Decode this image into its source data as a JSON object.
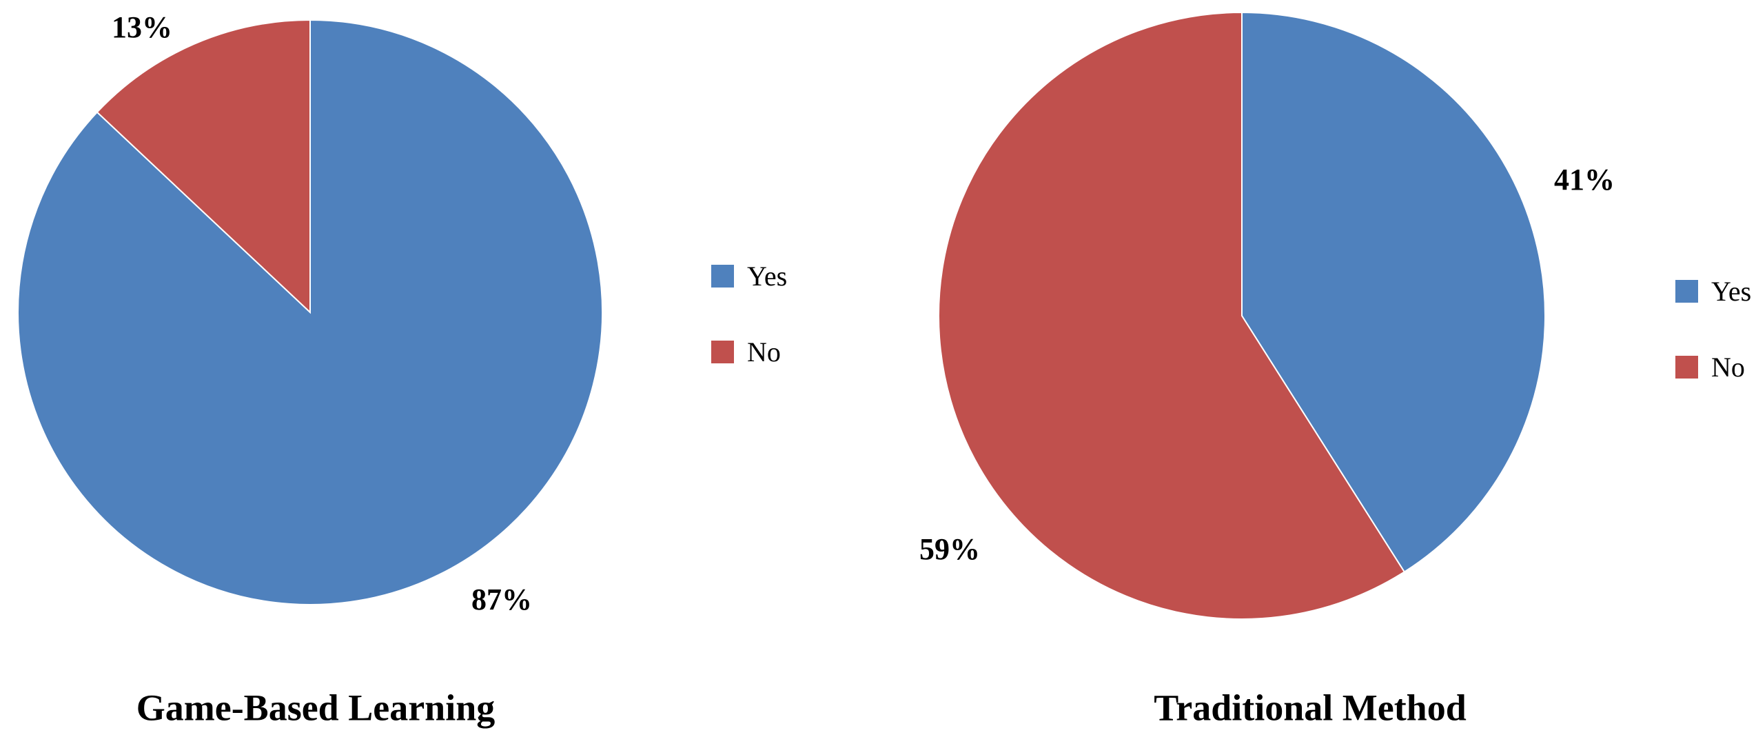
{
  "chart_data": [
    {
      "type": "pie",
      "title": "Game-Based Learning",
      "categories": [
        "Yes",
        "No"
      ],
      "values": [
        87,
        13
      ],
      "value_labels": [
        "87%",
        "13%"
      ],
      "colors": [
        "#4f81bd",
        "#c0504d"
      ],
      "legend": "right"
    },
    {
      "type": "pie",
      "title": "Traditional Method",
      "categories": [
        "Yes",
        "No"
      ],
      "values": [
        41,
        59
      ],
      "value_labels": [
        "41%",
        "59%"
      ],
      "colors": [
        "#4f81bd",
        "#c0504d"
      ],
      "legend": "right"
    }
  ]
}
